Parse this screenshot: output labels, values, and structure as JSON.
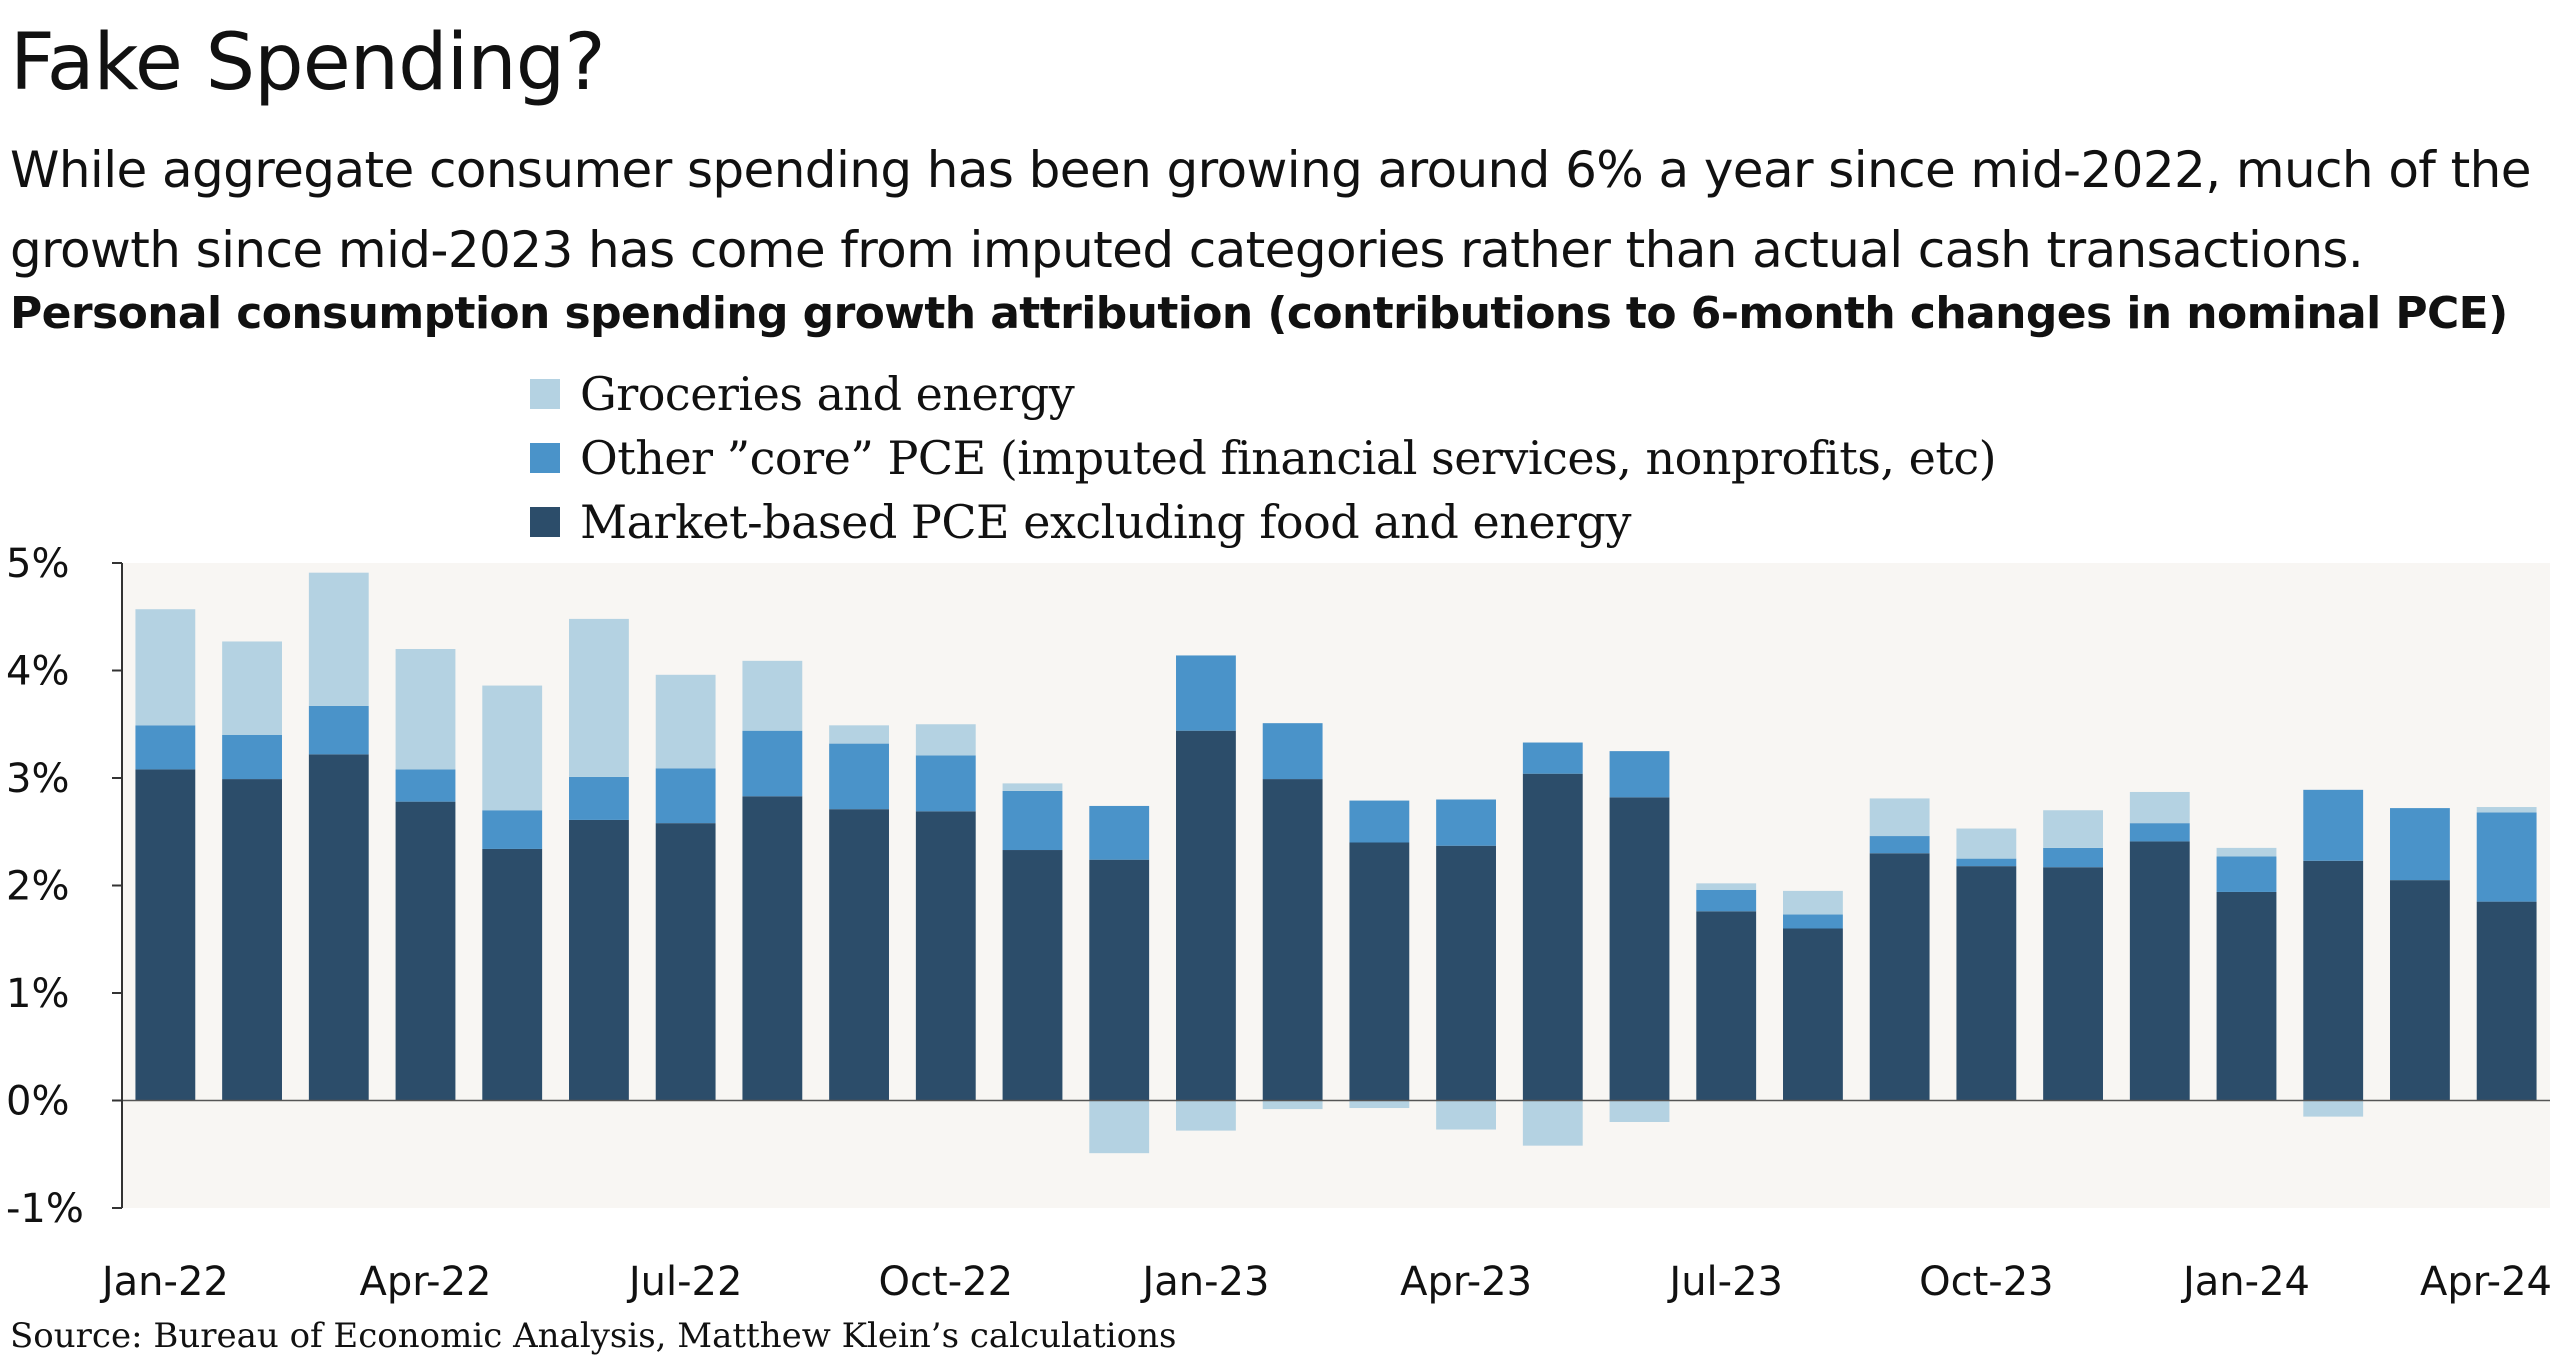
{
  "header": {
    "title": "Fake Spending?",
    "subtitle": "While aggregate consumer spending has been growing around 6% a year since mid-2022, much of the growth since mid-2023 has come from imputed categories rather than actual cash transactions.",
    "chart_title": "Personal consumption spending growth attribution (contributions to 6-month changes in nominal PCE)"
  },
  "source": "Source: Bureau of Economic Analysis, Matthew Klein’s calculations",
  "colors": {
    "groceries": "#b4d2e2",
    "other_core": "#4a93c9",
    "market_based": "#2c4d6a",
    "plot_background": "#f8f6f3",
    "axis": "#333333"
  },
  "legend": [
    {
      "label": "Groceries and energy",
      "color": "#b4d2e2"
    },
    {
      "label": "Other ”core” PCE (imputed financial services, nonprofits, etc)",
      "color": "#4a93c9"
    },
    {
      "label": "Market-based PCE excluding food and energy",
      "color": "#2c4d6a"
    }
  ],
  "chart_data": {
    "type": "bar",
    "stacked": true,
    "categories": [
      "Jan-22",
      "Feb-22",
      "Mar-22",
      "Apr-22",
      "May-22",
      "Jun-22",
      "Jul-22",
      "Aug-22",
      "Sep-22",
      "Oct-22",
      "Nov-22",
      "Dec-22",
      "Jan-23",
      "Feb-23",
      "Mar-23",
      "Apr-23",
      "May-23",
      "Jun-23",
      "Jul-23",
      "Aug-23",
      "Sep-23",
      "Oct-23",
      "Nov-23",
      "Dec-23",
      "Jan-24",
      "Feb-24",
      "Mar-24",
      "Apr-24"
    ],
    "series": [
      {
        "name": "Market-based PCE excluding food and energy",
        "values": [
          3.08,
          2.99,
          3.22,
          2.78,
          2.34,
          2.61,
          2.58,
          2.83,
          2.71,
          2.69,
          2.33,
          2.24,
          3.44,
          2.99,
          2.4,
          2.37,
          3.04,
          2.82,
          1.76,
          1.6,
          2.3,
          2.18,
          2.17,
          2.41,
          1.94,
          2.23,
          2.05,
          1.85
        ]
      },
      {
        "name": "Other ”core” PCE (imputed financial services, nonprofits, etc)",
        "values": [
          0.41,
          0.41,
          0.45,
          0.3,
          0.36,
          0.4,
          0.51,
          0.61,
          0.61,
          0.52,
          0.55,
          0.5,
          0.7,
          0.52,
          0.39,
          0.43,
          0.29,
          0.43,
          0.2,
          0.13,
          0.16,
          0.07,
          0.18,
          0.17,
          0.33,
          0.66,
          0.67,
          0.83
        ]
      },
      {
        "name": "Groceries and energy",
        "values": [
          1.08,
          0.87,
          1.24,
          1.12,
          1.16,
          1.47,
          0.87,
          0.65,
          0.17,
          0.29,
          0.07,
          -0.49,
          -0.28,
          -0.08,
          -0.07,
          -0.27,
          -0.42,
          -0.2,
          0.06,
          0.22,
          0.35,
          0.28,
          0.35,
          0.29,
          0.08,
          -0.15,
          0.0,
          0.05
        ]
      }
    ],
    "y_ticks": [
      "5%",
      "4%",
      "3%",
      "2%",
      "1%",
      "0%",
      "-1%"
    ],
    "ylim": [
      -1,
      5
    ],
    "x_tick_labels": [
      "Jan-22",
      "Apr-22",
      "Jul-22",
      "Oct-22",
      "Jan-23",
      "Apr-23",
      "Jul-23",
      "Oct-23",
      "Jan-24",
      "Apr-24"
    ],
    "x_tick_every": 3,
    "grid": false,
    "legend_position": "top"
  }
}
